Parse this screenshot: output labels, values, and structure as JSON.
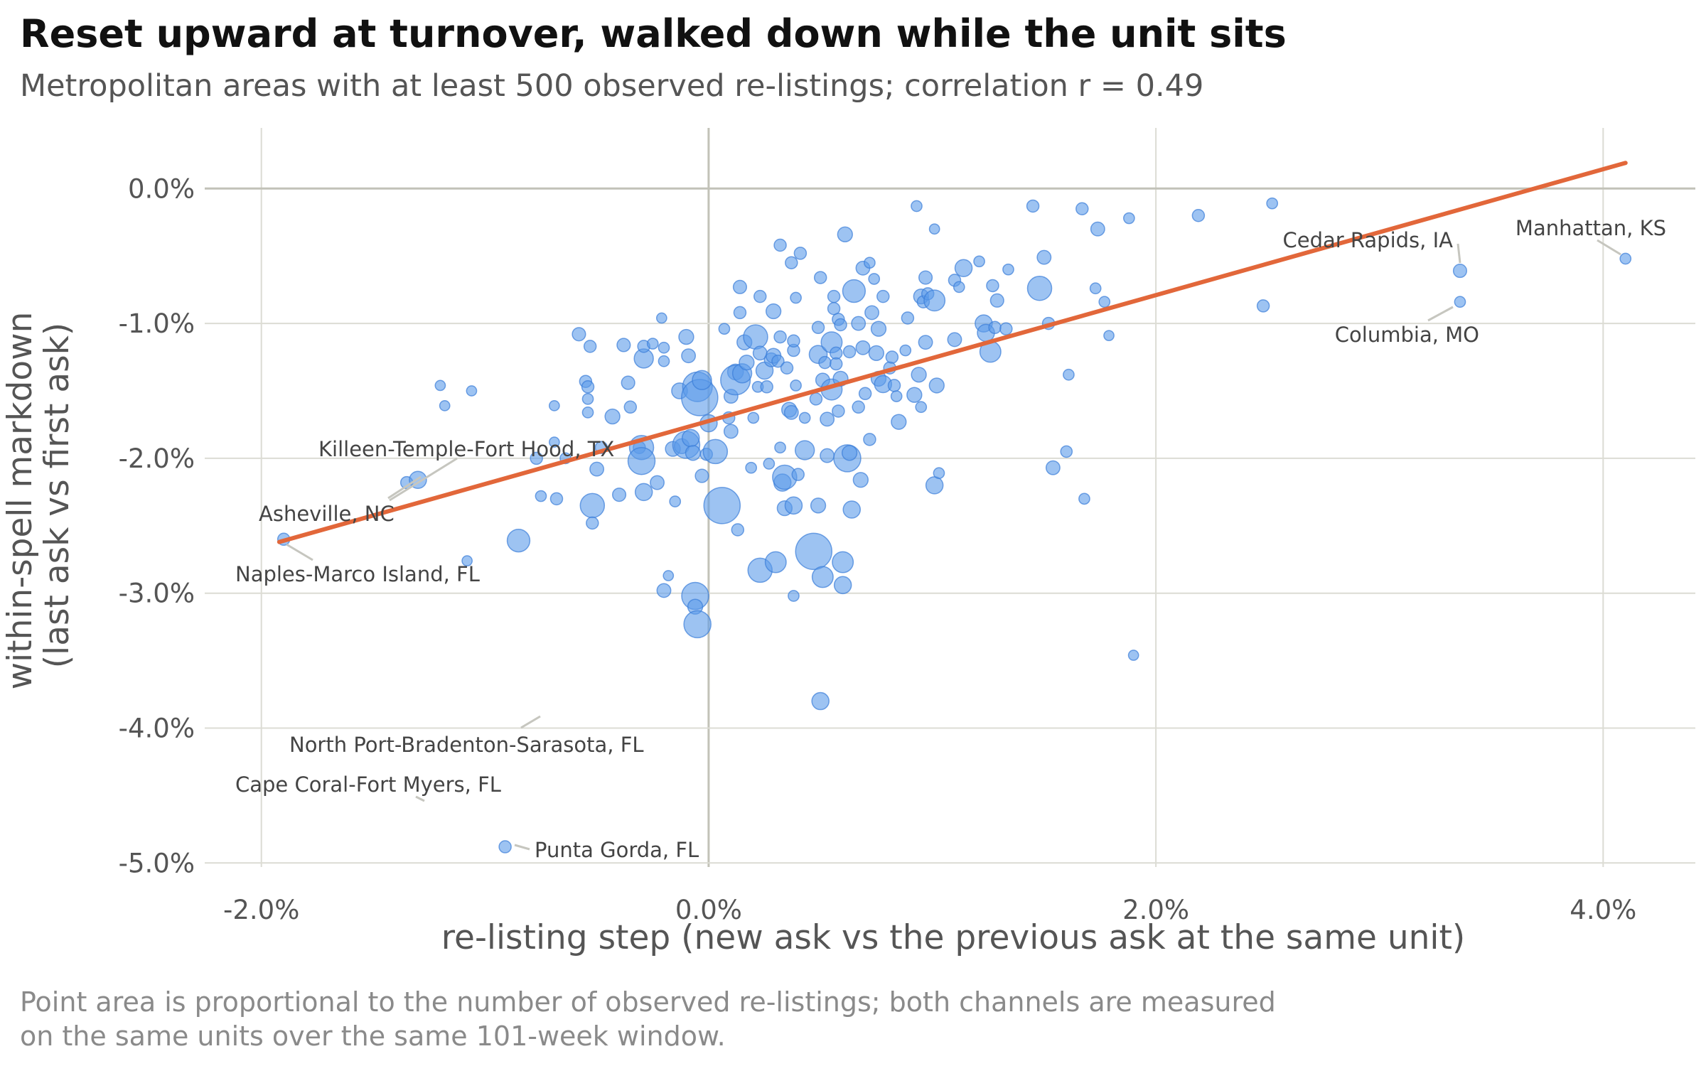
{
  "chart_data": {
    "type": "scatter",
    "title": "Reset upward at turnover, walked down while the unit sits",
    "subtitle": "Metropolitan areas with at least 500 observed re-listings; correlation r = 0.49",
    "xlabel": "re-listing step (new ask vs the previous ask at the same unit)",
    "ylabel_lines": [
      "within-spell markdown",
      "(last ask vs first ask)"
    ],
    "caption_lines": [
      "Point area is proportional to the number of observed re-listings; both channels are measured",
      "on the same units over the same 101-week window."
    ],
    "xlim": [
      -2.2,
      4.4
    ],
    "ylim": [
      -5.1,
      0.4
    ],
    "xticks": [
      -2,
      0,
      2,
      4
    ],
    "xtick_labels": [
      "-2.0%",
      "0.0%",
      "2.0%",
      "4.0%"
    ],
    "yticks": [
      0,
      -1,
      -2,
      -3,
      -4,
      -5
    ],
    "ytick_labels": [
      "0.0%",
      "-1.0%",
      "-2.0%",
      "-3.0%",
      "-4.0%",
      "-5.0%"
    ],
    "grid": true,
    "colors": {
      "points": "#5b9bea",
      "points_edge": "#3a7dd8",
      "fit_line": "#e2673a",
      "zero_line": "#c2c2b8",
      "grid": "#dcdcd4",
      "leader": "#c6c6bf"
    },
    "fit_line": {
      "x": [
        -1.92,
        4.1
      ],
      "y": [
        -2.62,
        0.19
      ]
    },
    "labeled_points": [
      {
        "name": "Killeen-Temple-Fort Hood, TX",
        "x": -1.3,
        "y": -2.16,
        "s": 2
      },
      {
        "name": "Asheville, NC",
        "x": -1.3,
        "y": -2.16,
        "s": 2
      },
      {
        "name": "Naples-Marco Island, FL",
        "x": -1.92,
        "y": -2.62,
        "s": 1
      },
      {
        "name": "North Port-Bradenton-Sarasota, FL",
        "x": -0.73,
        "y": -3.9,
        "s": 2
      },
      {
        "name": "Cape Coral-Fort Myers, FL",
        "x": -1.27,
        "y": -4.57,
        "s": 2
      },
      {
        "name": "Punta Gorda, FL",
        "x": -0.9,
        "y": -4.88,
        "s": 1
      },
      {
        "name": "Cedar Rapids, IA",
        "x": 3.36,
        "y": -0.61,
        "s": 1
      },
      {
        "name": "Columbia, MO",
        "x": 3.36,
        "y": -0.84,
        "s": 1
      },
      {
        "name": "Manhattan, KS",
        "x": 4.1,
        "y": -0.52,
        "s": 0.6
      }
    ],
    "points": [
      {
        "x": -1.9,
        "y": -2.6,
        "s": 1
      },
      {
        "x": -1.35,
        "y": -2.18,
        "s": 1
      },
      {
        "x": -1.3,
        "y": -2.16,
        "s": 2
      },
      {
        "x": -1.2,
        "y": -1.46,
        "s": 0.7
      },
      {
        "x": -1.18,
        "y": -1.61,
        "s": 0.7
      },
      {
        "x": -1.06,
        "y": -1.5,
        "s": 0.7
      },
      {
        "x": -1.08,
        "y": -2.76,
        "s": 0.7
      },
      {
        "x": -0.91,
        "y": -4.88,
        "s": 1
      },
      {
        "x": -0.85,
        "y": -2.61,
        "s": 3.5
      },
      {
        "x": -0.77,
        "y": -2.0,
        "s": 1
      },
      {
        "x": -0.75,
        "y": -2.28,
        "s": 0.8
      },
      {
        "x": -0.69,
        "y": -1.61,
        "s": 0.7
      },
      {
        "x": -0.69,
        "y": -1.88,
        "s": 0.7
      },
      {
        "x": -0.68,
        "y": -2.3,
        "s": 1
      },
      {
        "x": -0.64,
        "y": -2.0,
        "s": 0.8
      },
      {
        "x": -0.58,
        "y": -1.08,
        "s": 1.2
      },
      {
        "x": -0.55,
        "y": -1.43,
        "s": 1
      },
      {
        "x": -0.54,
        "y": -1.47,
        "s": 1
      },
      {
        "x": -0.54,
        "y": -1.56,
        "s": 0.8
      },
      {
        "x": -0.54,
        "y": -1.66,
        "s": 0.8
      },
      {
        "x": -0.53,
        "y": -1.17,
        "s": 1
      },
      {
        "x": -0.52,
        "y": -2.35,
        "s": 4
      },
      {
        "x": -0.52,
        "y": -2.48,
        "s": 1
      },
      {
        "x": -0.5,
        "y": -2.08,
        "s": 1.3
      },
      {
        "x": -0.48,
        "y": -1.92,
        "s": 1
      },
      {
        "x": -0.43,
        "y": -1.69,
        "s": 1.5
      },
      {
        "x": -0.4,
        "y": -2.27,
        "s": 1.2
      },
      {
        "x": -0.38,
        "y": -1.16,
        "s": 1.2
      },
      {
        "x": -0.36,
        "y": -1.44,
        "s": 1.2
      },
      {
        "x": -0.35,
        "y": -1.62,
        "s": 1
      },
      {
        "x": -0.31,
        "y": -1.92,
        "s": 1
      },
      {
        "x": -0.29,
        "y": -1.26,
        "s": 2.5
      },
      {
        "x": -0.29,
        "y": -1.17,
        "s": 1
      },
      {
        "x": -0.3,
        "y": -1.92,
        "s": 4
      },
      {
        "x": -0.3,
        "y": -2.02,
        "s": 5
      },
      {
        "x": -0.29,
        "y": -2.25,
        "s": 2
      },
      {
        "x": -0.25,
        "y": -1.15,
        "s": 0.8
      },
      {
        "x": -0.23,
        "y": -2.18,
        "s": 1.3
      },
      {
        "x": -0.21,
        "y": -0.96,
        "s": 0.7
      },
      {
        "x": -0.2,
        "y": -1.18,
        "s": 0.8
      },
      {
        "x": -0.2,
        "y": -1.28,
        "s": 0.8
      },
      {
        "x": -0.2,
        "y": -2.98,
        "s": 1.3
      },
      {
        "x": -0.18,
        "y": -2.87,
        "s": 0.7
      },
      {
        "x": -0.16,
        "y": -1.93,
        "s": 1.5
      },
      {
        "x": -0.15,
        "y": -2.32,
        "s": 0.8
      },
      {
        "x": -0.13,
        "y": -1.5,
        "s": 1.7
      },
      {
        "x": -0.12,
        "y": -1.91,
        "s": 1.5
      },
      {
        "x": -0.1,
        "y": -1.1,
        "s": 1.5
      },
      {
        "x": -0.1,
        "y": -1.9,
        "s": 5
      },
      {
        "x": -0.09,
        "y": -1.24,
        "s": 1.3
      },
      {
        "x": -0.08,
        "y": -1.85,
        "s": 2
      },
      {
        "x": -0.07,
        "y": -1.96,
        "s": 1.5
      },
      {
        "x": -0.06,
        "y": -3.02,
        "s": 5
      },
      {
        "x": -0.06,
        "y": -3.1,
        "s": 1.5
      },
      {
        "x": -0.05,
        "y": -3.23,
        "s": 5
      },
      {
        "x": -0.05,
        "y": -1.47,
        "s": 6
      },
      {
        "x": -0.04,
        "y": -1.55,
        "s": 9
      },
      {
        "x": -0.03,
        "y": -1.42,
        "s": 2.5
      },
      {
        "x": -0.03,
        "y": -2.13,
        "s": 1.2
      },
      {
        "x": -0.01,
        "y": -1.97,
        "s": 1
      },
      {
        "x": 0.0,
        "y": -1.74,
        "s": 2
      },
      {
        "x": 0.03,
        "y": -1.95,
        "s": 4
      },
      {
        "x": 0.06,
        "y": -2.35,
        "s": 9
      },
      {
        "x": 0.07,
        "y": -1.04,
        "s": 0.8
      },
      {
        "x": 0.09,
        "y": -1.7,
        "s": 1
      },
      {
        "x": 0.1,
        "y": -1.54,
        "s": 1.3
      },
      {
        "x": 0.1,
        "y": -1.8,
        "s": 1.3
      },
      {
        "x": 0.12,
        "y": -1.36,
        "s": 1.7
      },
      {
        "x": 0.12,
        "y": -1.42,
        "s": 6
      },
      {
        "x": 0.13,
        "y": -2.53,
        "s": 1
      },
      {
        "x": 0.14,
        "y": -0.73,
        "s": 1.2
      },
      {
        "x": 0.14,
        "y": -0.92,
        "s": 1
      },
      {
        "x": 0.15,
        "y": -1.37,
        "s": 2.5
      },
      {
        "x": 0.16,
        "y": -1.14,
        "s": 1.5
      },
      {
        "x": 0.17,
        "y": -1.29,
        "s": 1.5
      },
      {
        "x": 0.19,
        "y": -2.07,
        "s": 0.8
      },
      {
        "x": 0.2,
        "y": -1.7,
        "s": 0.8
      },
      {
        "x": 0.21,
        "y": -1.1,
        "s": 4
      },
      {
        "x": 0.22,
        "y": -1.47,
        "s": 0.8
      },
      {
        "x": 0.23,
        "y": -0.8,
        "s": 1
      },
      {
        "x": 0.23,
        "y": -1.22,
        "s": 1.3
      },
      {
        "x": 0.23,
        "y": -2.83,
        "s": 4
      },
      {
        "x": 0.25,
        "y": -1.35,
        "s": 2
      },
      {
        "x": 0.26,
        "y": -1.47,
        "s": 1
      },
      {
        "x": 0.27,
        "y": -2.04,
        "s": 0.8
      },
      {
        "x": 0.28,
        "y": -1.27,
        "s": 1.3
      },
      {
        "x": 0.29,
        "y": -1.24,
        "s": 1.5
      },
      {
        "x": 0.29,
        "y": -0.91,
        "s": 1.5
      },
      {
        "x": 0.3,
        "y": -2.77,
        "s": 3
      },
      {
        "x": 0.31,
        "y": -1.28,
        "s": 1
      },
      {
        "x": 0.32,
        "y": -0.42,
        "s": 1
      },
      {
        "x": 0.32,
        "y": -1.1,
        "s": 1
      },
      {
        "x": 0.32,
        "y": -1.92,
        "s": 0.8
      },
      {
        "x": 0.33,
        "y": -2.18,
        "s": 2
      },
      {
        "x": 0.34,
        "y": -2.37,
        "s": 1.5
      },
      {
        "x": 0.34,
        "y": -2.14,
        "s": 4
      },
      {
        "x": 0.35,
        "y": -1.33,
        "s": 1
      },
      {
        "x": 0.36,
        "y": -1.64,
        "s": 1.5
      },
      {
        "x": 0.37,
        "y": -1.66,
        "s": 1.3
      },
      {
        "x": 0.37,
        "y": -0.55,
        "s": 1
      },
      {
        "x": 0.38,
        "y": -1.2,
        "s": 1
      },
      {
        "x": 0.38,
        "y": -1.13,
        "s": 1
      },
      {
        "x": 0.39,
        "y": -0.81,
        "s": 0.8
      },
      {
        "x": 0.39,
        "y": -1.46,
        "s": 0.8
      },
      {
        "x": 0.38,
        "y": -3.02,
        "s": 0.8
      },
      {
        "x": 0.38,
        "y": -2.35,
        "s": 2
      },
      {
        "x": 0.4,
        "y": -2.12,
        "s": 1
      },
      {
        "x": 0.41,
        "y": -0.48,
        "s": 1
      },
      {
        "x": 0.43,
        "y": -1.94,
        "s": 2.5
      },
      {
        "x": 0.43,
        "y": -1.7,
        "s": 0.8
      },
      {
        "x": 0.47,
        "y": -2.69,
        "s": 9
      },
      {
        "x": 0.48,
        "y": -1.56,
        "s": 1
      },
      {
        "x": 0.49,
        "y": -1.23,
        "s": 2.2
      },
      {
        "x": 0.49,
        "y": -1.03,
        "s": 1
      },
      {
        "x": 0.49,
        "y": -2.35,
        "s": 1.5
      },
      {
        "x": 0.5,
        "y": -0.66,
        "s": 1
      },
      {
        "x": 0.5,
        "y": -3.8,
        "s": 2
      },
      {
        "x": 0.51,
        "y": -2.88,
        "s": 3
      },
      {
        "x": 0.51,
        "y": -1.42,
        "s": 1.3
      },
      {
        "x": 0.52,
        "y": -1.29,
        "s": 1
      },
      {
        "x": 0.53,
        "y": -1.71,
        "s": 1.3
      },
      {
        "x": 0.53,
        "y": -1.98,
        "s": 1.3
      },
      {
        "x": 0.55,
        "y": -1.14,
        "s": 3
      },
      {
        "x": 0.55,
        "y": -1.49,
        "s": 3
      },
      {
        "x": 0.56,
        "y": -0.8,
        "s": 1
      },
      {
        "x": 0.56,
        "y": -0.89,
        "s": 1
      },
      {
        "x": 0.57,
        "y": -1.22,
        "s": 1
      },
      {
        "x": 0.57,
        "y": -1.3,
        "s": 1
      },
      {
        "x": 0.58,
        "y": -0.97,
        "s": 1
      },
      {
        "x": 0.58,
        "y": -1.65,
        "s": 1
      },
      {
        "x": 0.59,
        "y": -1.41,
        "s": 1.5
      },
      {
        "x": 0.59,
        "y": -1.01,
        "s": 1
      },
      {
        "x": 0.6,
        "y": -2.94,
        "s": 2
      },
      {
        "x": 0.6,
        "y": -2.77,
        "s": 3
      },
      {
        "x": 0.61,
        "y": -0.34,
        "s": 1.5
      },
      {
        "x": 0.62,
        "y": -2.0,
        "s": 5
      },
      {
        "x": 0.63,
        "y": -1.21,
        "s": 1
      },
      {
        "x": 0.63,
        "y": -1.96,
        "s": 1.5
      },
      {
        "x": 0.64,
        "y": -2.38,
        "s": 2
      },
      {
        "x": 0.65,
        "y": -0.76,
        "s": 3.5
      },
      {
        "x": 0.67,
        "y": -1.0,
        "s": 1.3
      },
      {
        "x": 0.67,
        "y": -1.62,
        "s": 1
      },
      {
        "x": 0.68,
        "y": -2.16,
        "s": 1.5
      },
      {
        "x": 0.69,
        "y": -1.18,
        "s": 1.3
      },
      {
        "x": 0.69,
        "y": -0.59,
        "s": 1.3
      },
      {
        "x": 0.7,
        "y": -1.52,
        "s": 1
      },
      {
        "x": 0.72,
        "y": -0.55,
        "s": 0.8
      },
      {
        "x": 0.72,
        "y": -1.86,
        "s": 1
      },
      {
        "x": 0.73,
        "y": -0.92,
        "s": 1.3
      },
      {
        "x": 0.74,
        "y": -0.67,
        "s": 0.8
      },
      {
        "x": 0.75,
        "y": -1.22,
        "s": 1.5
      },
      {
        "x": 0.76,
        "y": -1.04,
        "s": 1.5
      },
      {
        "x": 0.76,
        "y": -1.41,
        "s": 1.5
      },
      {
        "x": 0.78,
        "y": -0.8,
        "s": 1
      },
      {
        "x": 0.78,
        "y": -1.45,
        "s": 2
      },
      {
        "x": 0.81,
        "y": -1.33,
        "s": 1
      },
      {
        "x": 0.82,
        "y": -1.25,
        "s": 1
      },
      {
        "x": 0.83,
        "y": -1.46,
        "s": 1
      },
      {
        "x": 0.84,
        "y": -1.54,
        "s": 0.8
      },
      {
        "x": 0.85,
        "y": -1.73,
        "s": 1.5
      },
      {
        "x": 0.88,
        "y": -1.2,
        "s": 0.8
      },
      {
        "x": 0.89,
        "y": -0.96,
        "s": 1
      },
      {
        "x": 0.92,
        "y": -1.53,
        "s": 1.5
      },
      {
        "x": 0.93,
        "y": -0.13,
        "s": 0.8
      },
      {
        "x": 0.94,
        "y": -1.38,
        "s": 1.5
      },
      {
        "x": 0.95,
        "y": -1.62,
        "s": 0.8
      },
      {
        "x": 0.95,
        "y": -0.8,
        "s": 1.5
      },
      {
        "x": 0.96,
        "y": -0.84,
        "s": 1
      },
      {
        "x": 0.97,
        "y": -0.66,
        "s": 1.2
      },
      {
        "x": 0.97,
        "y": -1.14,
        "s": 1.3
      },
      {
        "x": 0.98,
        "y": -0.78,
        "s": 1
      },
      {
        "x": 1.01,
        "y": -0.83,
        "s": 3
      },
      {
        "x": 1.01,
        "y": -2.2,
        "s": 2
      },
      {
        "x": 1.01,
        "y": -0.3,
        "s": 0.7
      },
      {
        "x": 1.02,
        "y": -1.46,
        "s": 1.5
      },
      {
        "x": 1.03,
        "y": -2.11,
        "s": 0.8
      },
      {
        "x": 1.1,
        "y": -1.12,
        "s": 1.3
      },
      {
        "x": 1.1,
        "y": -0.68,
        "s": 1
      },
      {
        "x": 1.12,
        "y": -0.73,
        "s": 0.8
      },
      {
        "x": 1.14,
        "y": -0.59,
        "s": 2
      },
      {
        "x": 1.21,
        "y": -0.54,
        "s": 0.8
      },
      {
        "x": 1.23,
        "y": -1.0,
        "s": 2
      },
      {
        "x": 1.24,
        "y": -1.07,
        "s": 2
      },
      {
        "x": 1.26,
        "y": -1.21,
        "s": 3
      },
      {
        "x": 1.27,
        "y": -0.72,
        "s": 1
      },
      {
        "x": 1.28,
        "y": -1.03,
        "s": 1
      },
      {
        "x": 1.29,
        "y": -0.83,
        "s": 1.2
      },
      {
        "x": 1.33,
        "y": -1.04,
        "s": 1
      },
      {
        "x": 1.34,
        "y": -0.6,
        "s": 0.8
      },
      {
        "x": 1.45,
        "y": -0.13,
        "s": 1
      },
      {
        "x": 1.48,
        "y": -0.74,
        "s": 4
      },
      {
        "x": 1.5,
        "y": -0.51,
        "s": 1.3
      },
      {
        "x": 1.52,
        "y": -1.0,
        "s": 1
      },
      {
        "x": 1.54,
        "y": -2.07,
        "s": 1.3
      },
      {
        "x": 1.6,
        "y": -1.95,
        "s": 0.9
      },
      {
        "x": 1.61,
        "y": -1.38,
        "s": 0.8
      },
      {
        "x": 1.67,
        "y": -0.15,
        "s": 1
      },
      {
        "x": 1.68,
        "y": -2.3,
        "s": 0.8
      },
      {
        "x": 1.73,
        "y": -0.74,
        "s": 0.8
      },
      {
        "x": 1.74,
        "y": -0.3,
        "s": 1.3
      },
      {
        "x": 1.77,
        "y": -0.84,
        "s": 0.8
      },
      {
        "x": 1.79,
        "y": -1.09,
        "s": 0.7
      },
      {
        "x": 1.88,
        "y": -0.22,
        "s": 0.8
      },
      {
        "x": 1.9,
        "y": -3.46,
        "s": 0.7
      },
      {
        "x": 2.19,
        "y": -0.2,
        "s": 1
      },
      {
        "x": 2.48,
        "y": -0.87,
        "s": 1
      },
      {
        "x": 2.52,
        "y": -0.11,
        "s": 0.8
      },
      {
        "x": 3.36,
        "y": -0.61,
        "s": 1.2
      },
      {
        "x": 3.36,
        "y": -0.84,
        "s": 0.8
      },
      {
        "x": 4.1,
        "y": -0.52,
        "s": 0.8
      }
    ]
  }
}
